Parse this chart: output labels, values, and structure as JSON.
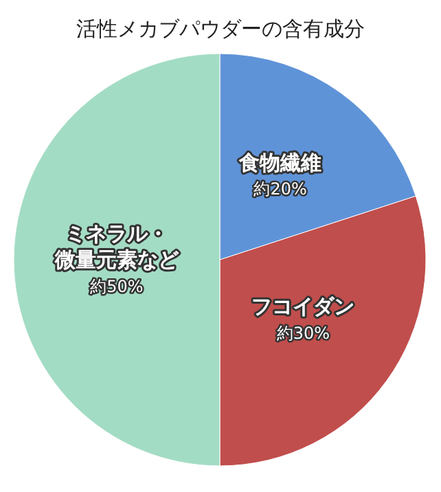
{
  "chart_data": {
    "type": "pie",
    "title": "活性メカブパウダーの含有成分",
    "categories": [
      "食物繊維",
      "フコイダン",
      "ミネラル・微量元素など"
    ],
    "values": [
      20,
      30,
      50
    ],
    "value_labels": [
      "約20%",
      "約30%",
      "約50%"
    ],
    "colors": [
      "#5f93d8",
      "#c04e4c",
      "#a3dcc4"
    ],
    "legend": false
  }
}
